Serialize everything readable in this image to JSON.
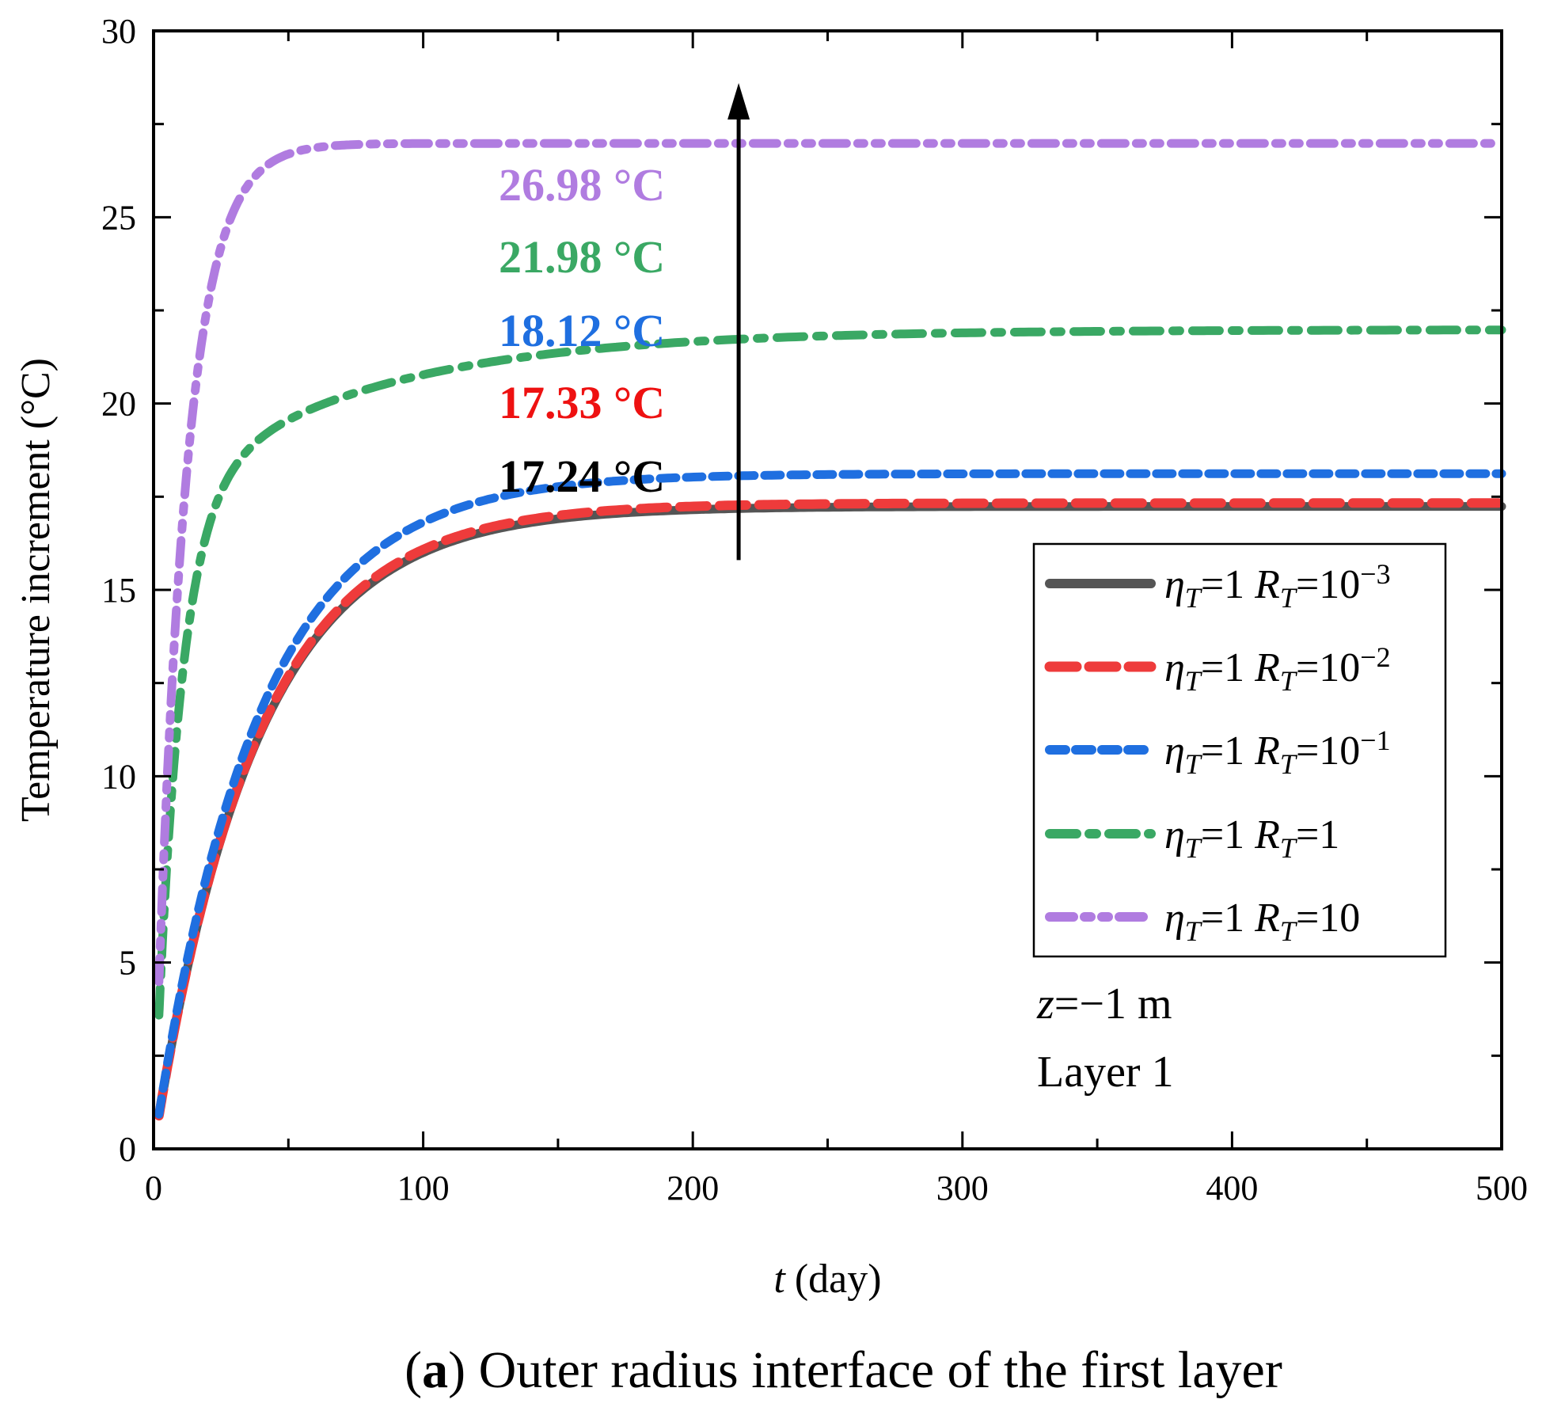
{
  "chart_data": {
    "type": "line",
    "title": "",
    "caption_label": "a",
    "caption_rest": "Outer radius interface of the first layer",
    "xlabel_symbol": "t",
    "xlabel_unit": "(day)",
    "ylabel": "Temperature increment (°C)",
    "xlim": [
      0,
      500
    ],
    "ylim": [
      0,
      30
    ],
    "xticks": [
      0,
      100,
      200,
      300,
      400,
      500
    ],
    "yticks": [
      0,
      5,
      10,
      15,
      20,
      25,
      30
    ],
    "x_minor_step": 50,
    "y_minor_step": 2.5,
    "series": [
      {
        "name": "ηT=1 RT=10^-3",
        "eta": "η",
        "eta_sub": "T",
        "eq1": "=1 ",
        "r": "R",
        "r_sub": "T",
        "eq2": "=10",
        "sup": "−3",
        "color": "#555555",
        "dash": "solid",
        "steady": 17.24,
        "tau": 38,
        "shape": "expo"
      },
      {
        "name": "ηT=1 RT=10^-2",
        "eta": "η",
        "eta_sub": "T",
        "eq1": "=1 ",
        "r": "R",
        "r_sub": "T",
        "eq2": "=10",
        "sup": "−2",
        "color": "#ee3b3b",
        "dash": "long-dash",
        "steady": 17.33,
        "tau": 38,
        "shape": "expo"
      },
      {
        "name": "ηT=1 RT=10^-1",
        "eta": "η",
        "eta_sub": "T",
        "eq1": "=1 ",
        "r": "R",
        "r_sub": "T",
        "eq2": "=10",
        "sup": "−1",
        "color": "#1f6fe0",
        "dash": "dash",
        "steady": 18.12,
        "tau": 38,
        "shape": "expo"
      },
      {
        "name": "ηT=1 RT=1",
        "eta": "η",
        "eta_sub": "T",
        "eq1": "=1 ",
        "r": "R",
        "r_sub": "T",
        "eq2": "=1",
        "sup": "",
        "color": "#3aa864",
        "dash": "dash-dot",
        "steady": 21.98,
        "tau": 38,
        "shape": "fast-slow"
      },
      {
        "name": "ηT=1 RT=10",
        "eta": "η",
        "eta_sub": "T",
        "eq1": "=1 ",
        "r": "R",
        "r_sub": "T",
        "eq2": "=10",
        "sup": "",
        "color": "#b07ce0",
        "dash": "dash-dot-dot",
        "steady": 26.98,
        "tau": 11,
        "shape": "expo"
      }
    ],
    "annotations": [
      {
        "text": "26.98 °C",
        "color": "#b07ce0"
      },
      {
        "text": "21.98 °C",
        "color": "#3aa864"
      },
      {
        "text": "18.12 °C",
        "color": "#1f6fe0"
      },
      {
        "text": "17.33 °C",
        "color": "#ee1111"
      },
      {
        "text": "17.24 °C",
        "color": "#000000"
      }
    ],
    "arrow": {
      "x": 217,
      "y_from": 15.8,
      "y_to": 28.6
    },
    "notes": {
      "z_symbol": "z",
      "z_rest": "=−1 m",
      "layer": "Layer 1"
    }
  }
}
